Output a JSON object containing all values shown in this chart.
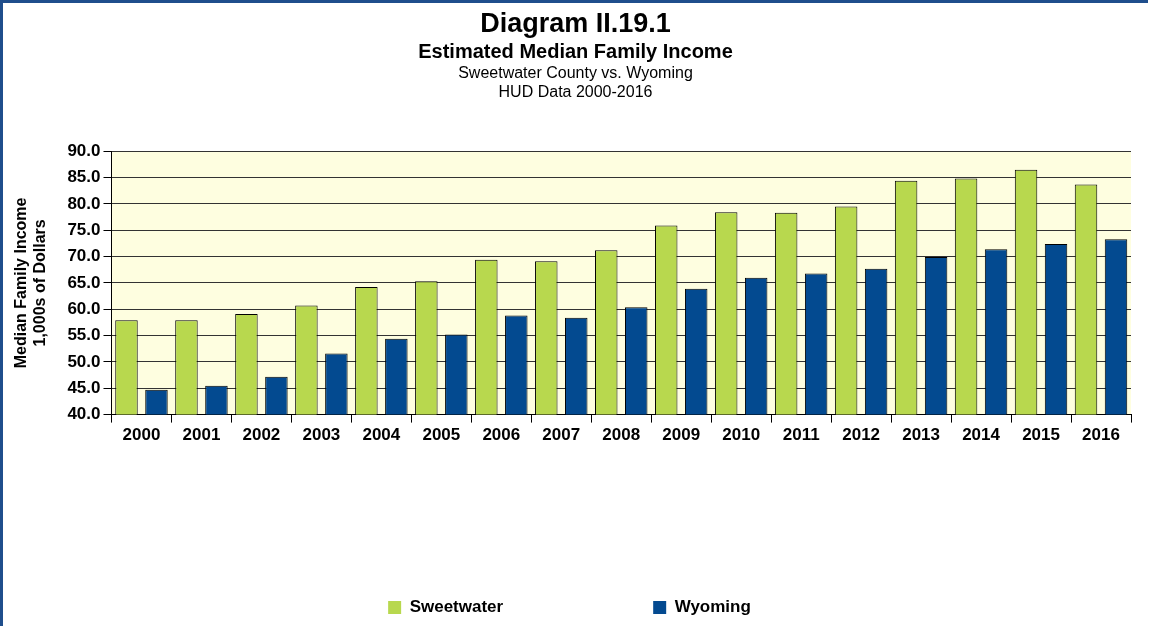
{
  "chart_data": {
    "type": "bar",
    "title": "Diagram II.19.1",
    "subtitle": "Estimated Median Family Income",
    "annotations": [
      "Sweetwater County vs. Wyoming",
      "HUD Data 2000-2016"
    ],
    "ylabel": "Median Family Income\n1,000s of Dollars",
    "categories": [
      "2000",
      "2001",
      "2002",
      "2003",
      "2004",
      "2005",
      "2006",
      "2007",
      "2008",
      "2009",
      "2010",
      "2011",
      "2012",
      "2013",
      "2014",
      "2015",
      "2016"
    ],
    "series": [
      {
        "name": "Sweetwater",
        "color": "#b8d84e",
        "values": [
          57.9,
          57.9,
          59.1,
          60.7,
          64.2,
          65.3,
          69.4,
          69.1,
          71.2,
          75.9,
          78.4,
          78.3,
          79.5,
          84.4,
          84.8,
          86.5,
          83.7
        ]
      },
      {
        "name": "Wyoming",
        "color": "#034a90",
        "values": [
          44.7,
          45.5,
          47.2,
          51.6,
          54.4,
          55.2,
          58.8,
          58.4,
          60.4,
          63.9,
          66.0,
          66.8,
          67.7,
          69.9,
          71.4,
          72.4,
          73.3
        ]
      }
    ],
    "ylim": [
      40,
      90
    ],
    "yticks": [
      {
        "value": 40,
        "label": "40.0"
      },
      {
        "value": 45,
        "label": "45.0"
      },
      {
        "value": 50,
        "label": "50.0"
      },
      {
        "value": 55,
        "label": "55.0"
      },
      {
        "value": 60,
        "label": "60.0"
      },
      {
        "value": 65,
        "label": "65.0"
      },
      {
        "value": 70,
        "label": "70.0"
      },
      {
        "value": 75,
        "label": "75.0"
      },
      {
        "value": 80,
        "label": "80.0"
      },
      {
        "value": 85,
        "label": "85.0"
      },
      {
        "value": 90,
        "label": "90.0"
      }
    ],
    "grid": "y",
    "legend": "bottom"
  }
}
